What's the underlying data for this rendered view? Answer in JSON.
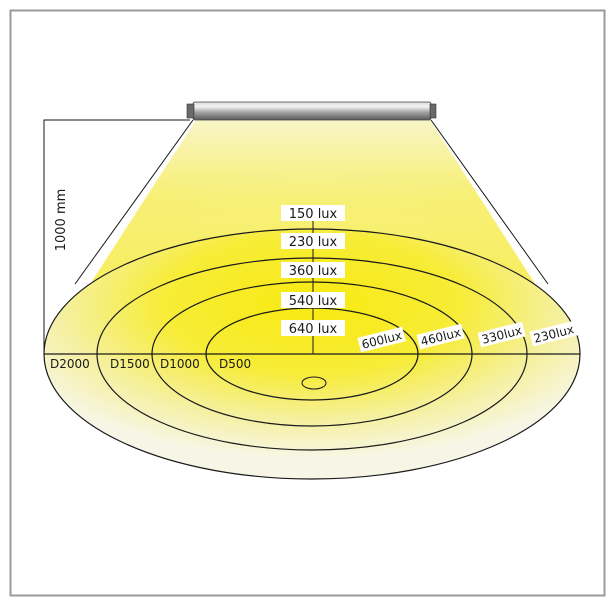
{
  "diagram": {
    "height_label": "1000 mm",
    "center_labels": [
      "150 lux",
      "230 lux",
      "360 lux",
      "540 lux",
      "640 lux"
    ],
    "ring_labels": [
      "600lux",
      "460lux",
      "330lux",
      "230lux"
    ],
    "diameter_labels": [
      "D2000",
      "D1500",
      "D1000",
      "D500"
    ],
    "colors": {
      "border": "#9a9a9a",
      "light_core": "#f8ee1c",
      "light_edge": "#f7f6e4",
      "line": "#1a1a1a",
      "fixture_body": "#9c9c9c"
    }
  }
}
